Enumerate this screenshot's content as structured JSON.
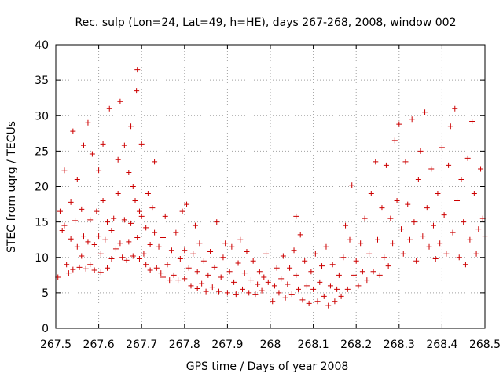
{
  "chart_data": {
    "type": "scatter",
    "title": "Rec. sulp (Lon=24, Lat=49, h=HE), days 267-268, 2008, window 002",
    "xlabel": "GPS time / Days of year 2008",
    "ylabel": "STEC from uqrg / TECUs",
    "xlim": [
      267.5,
      268.5
    ],
    "ylim": [
      0,
      40
    ],
    "x_ticks": [
      267.5,
      267.6,
      267.7,
      267.8,
      267.9,
      268.0,
      268.1,
      268.2,
      268.3,
      268.4,
      268.5
    ],
    "x_tick_labels": [
      "267.5",
      "267.6",
      "267.7",
      "267.8",
      "267.9",
      "268",
      "268.1",
      "268.2",
      "268.3",
      "268.4",
      "268.5"
    ],
    "y_ticks": [
      0,
      5,
      10,
      15,
      20,
      25,
      30,
      35,
      40
    ],
    "y_tick_labels": [
      "0",
      "5",
      "10",
      "15",
      "20",
      "25",
      "30",
      "35",
      "40"
    ],
    "grid": true,
    "marker": "+",
    "color": "#cc0000",
    "points": [
      [
        267.505,
        7.2
      ],
      [
        267.51,
        16.5
      ],
      [
        267.515,
        13.8
      ],
      [
        267.52,
        22.3
      ],
      [
        267.52,
        14.5
      ],
      [
        267.525,
        9.0
      ],
      [
        267.53,
        7.8
      ],
      [
        267.535,
        17.8
      ],
      [
        267.535,
        12.6
      ],
      [
        267.54,
        8.3
      ],
      [
        267.54,
        27.8
      ],
      [
        267.545,
        15.2
      ],
      [
        267.55,
        21.0
      ],
      [
        267.55,
        11.5
      ],
      [
        267.555,
        8.6
      ],
      [
        267.56,
        16.8
      ],
      [
        267.56,
        10.2
      ],
      [
        267.565,
        25.8
      ],
      [
        267.565,
        13.0
      ],
      [
        267.57,
        8.4
      ],
      [
        267.575,
        29.0
      ],
      [
        267.575,
        12.2
      ],
      [
        267.58,
        15.3
      ],
      [
        267.58,
        9.0
      ],
      [
        267.585,
        24.6
      ],
      [
        267.59,
        11.8
      ],
      [
        267.59,
        8.2
      ],
      [
        267.595,
        16.5
      ],
      [
        267.6,
        22.3
      ],
      [
        267.6,
        13.0
      ],
      [
        267.605,
        10.5
      ],
      [
        267.605,
        7.9
      ],
      [
        267.61,
        18.0
      ],
      [
        267.61,
        26.0
      ],
      [
        267.615,
        12.5
      ],
      [
        267.62,
        8.5
      ],
      [
        267.62,
        15.0
      ],
      [
        267.625,
        31.0
      ],
      [
        267.63,
        13.8
      ],
      [
        267.63,
        9.8
      ],
      [
        267.635,
        15.5
      ],
      [
        267.64,
        11.2
      ],
      [
        267.645,
        23.8
      ],
      [
        267.645,
        19.0
      ],
      [
        267.65,
        32.0
      ],
      [
        267.65,
        12.0
      ],
      [
        267.655,
        10.0
      ],
      [
        267.66,
        25.8
      ],
      [
        267.66,
        15.3
      ],
      [
        267.665,
        9.6
      ],
      [
        267.67,
        22.0
      ],
      [
        267.67,
        12.2
      ],
      [
        267.675,
        28.5
      ],
      [
        267.675,
        14.8
      ],
      [
        267.68,
        20.0
      ],
      [
        267.68,
        10.2
      ],
      [
        267.685,
        18.0
      ],
      [
        267.688,
        33.5
      ],
      [
        267.69,
        36.5
      ],
      [
        267.69,
        12.8
      ],
      [
        267.695,
        16.5
      ],
      [
        267.695,
        9.8
      ],
      [
        267.7,
        26.0
      ],
      [
        267.7,
        15.8
      ],
      [
        267.705,
        10.5
      ],
      [
        267.71,
        14.2
      ],
      [
        267.71,
        9.0
      ],
      [
        267.715,
        19.0
      ],
      [
        267.72,
        11.8
      ],
      [
        267.72,
        8.2
      ],
      [
        267.725,
        17.0
      ],
      [
        267.73,
        23.5
      ],
      [
        267.73,
        13.5
      ],
      [
        267.735,
        8.5
      ],
      [
        267.74,
        11.5
      ],
      [
        267.745,
        7.8
      ],
      [
        267.75,
        12.8
      ],
      [
        267.75,
        7.2
      ],
      [
        267.755,
        15.8
      ],
      [
        267.76,
        9.0
      ],
      [
        267.765,
        6.8
      ],
      [
        267.77,
        11.0
      ],
      [
        267.775,
        7.5
      ],
      [
        267.78,
        13.5
      ],
      [
        267.785,
        6.8
      ],
      [
        267.79,
        9.8
      ],
      [
        267.795,
        16.5
      ],
      [
        267.8,
        7.0
      ],
      [
        267.8,
        11.0
      ],
      [
        267.805,
        17.5
      ],
      [
        267.81,
        8.5
      ],
      [
        267.815,
        6.0
      ],
      [
        267.82,
        10.5
      ],
      [
        267.825,
        14.5
      ],
      [
        267.83,
        5.6
      ],
      [
        267.83,
        8.0
      ],
      [
        267.835,
        12.0
      ],
      [
        267.84,
        6.3
      ],
      [
        267.845,
        9.5
      ],
      [
        267.85,
        5.2
      ],
      [
        267.855,
        7.5
      ],
      [
        267.86,
        10.8
      ],
      [
        267.865,
        5.8
      ],
      [
        267.87,
        8.6
      ],
      [
        267.875,
        15.0
      ],
      [
        267.88,
        5.2
      ],
      [
        267.885,
        7.2
      ],
      [
        267.89,
        10.0
      ],
      [
        267.895,
        12.0
      ],
      [
        267.9,
        5.0
      ],
      [
        267.905,
        8.0
      ],
      [
        267.91,
        11.5
      ],
      [
        267.915,
        6.5
      ],
      [
        267.92,
        4.8
      ],
      [
        267.925,
        9.2
      ],
      [
        267.93,
        12.5
      ],
      [
        267.935,
        5.5
      ],
      [
        267.94,
        7.8
      ],
      [
        267.945,
        10.8
      ],
      [
        267.95,
        5.0
      ],
      [
        267.955,
        6.8
      ],
      [
        267.96,
        9.5
      ],
      [
        267.965,
        4.8
      ],
      [
        267.97,
        6.2
      ],
      [
        267.975,
        8.0
      ],
      [
        267.98,
        5.3
      ],
      [
        267.985,
        7.2
      ],
      [
        267.99,
        10.5
      ],
      [
        267.995,
        6.5
      ],
      [
        268.005,
        3.8
      ],
      [
        268.01,
        6.0
      ],
      [
        268.015,
        8.5
      ],
      [
        268.02,
        5.0
      ],
      [
        268.025,
        7.0
      ],
      [
        268.03,
        10.2
      ],
      [
        268.035,
        4.3
      ],
      [
        268.04,
        6.2
      ],
      [
        268.045,
        8.5
      ],
      [
        268.05,
        4.8
      ],
      [
        268.055,
        11.0
      ],
      [
        268.06,
        15.8
      ],
      [
        268.06,
        7.5
      ],
      [
        268.065,
        5.5
      ],
      [
        268.07,
        13.2
      ],
      [
        268.075,
        4.0
      ],
      [
        268.08,
        9.5
      ],
      [
        268.085,
        6.0
      ],
      [
        268.09,
        3.5
      ],
      [
        268.095,
        8.0
      ],
      [
        268.1,
        5.5
      ],
      [
        268.105,
        10.5
      ],
      [
        268.11,
        3.8
      ],
      [
        268.115,
        6.5
      ],
      [
        268.12,
        8.8
      ],
      [
        268.125,
        4.5
      ],
      [
        268.13,
        11.5
      ],
      [
        268.135,
        3.2
      ],
      [
        268.14,
        6.0
      ],
      [
        268.145,
        9.0
      ],
      [
        268.15,
        3.8
      ],
      [
        268.155,
        5.5
      ],
      [
        268.16,
        7.5
      ],
      [
        268.165,
        4.5
      ],
      [
        268.17,
        10.0
      ],
      [
        268.175,
        14.5
      ],
      [
        268.18,
        5.5
      ],
      [
        268.185,
        12.5
      ],
      [
        268.19,
        20.2
      ],
      [
        268.195,
        7.5
      ],
      [
        268.2,
        9.5
      ],
      [
        268.205,
        6.0
      ],
      [
        268.21,
        12.0
      ],
      [
        268.215,
        8.0
      ],
      [
        268.22,
        15.5
      ],
      [
        268.225,
        6.8
      ],
      [
        268.23,
        10.5
      ],
      [
        268.235,
        19.0
      ],
      [
        268.24,
        8.0
      ],
      [
        268.245,
        23.5
      ],
      [
        268.25,
        12.5
      ],
      [
        268.255,
        7.5
      ],
      [
        268.26,
        17.0
      ],
      [
        268.265,
        10.0
      ],
      [
        268.27,
        23.0
      ],
      [
        268.275,
        8.8
      ],
      [
        268.28,
        15.5
      ],
      [
        268.285,
        12.0
      ],
      [
        268.29,
        26.5
      ],
      [
        268.295,
        18.0
      ],
      [
        268.3,
        28.8
      ],
      [
        268.305,
        14.0
      ],
      [
        268.31,
        10.5
      ],
      [
        268.315,
        23.5
      ],
      [
        268.32,
        17.5
      ],
      [
        268.325,
        12.5
      ],
      [
        268.33,
        29.5
      ],
      [
        268.335,
        15.0
      ],
      [
        268.34,
        9.5
      ],
      [
        268.345,
        21.0
      ],
      [
        268.35,
        25.0
      ],
      [
        268.355,
        13.0
      ],
      [
        268.36,
        30.5
      ],
      [
        268.365,
        17.0
      ],
      [
        268.37,
        11.5
      ],
      [
        268.375,
        22.5
      ],
      [
        268.38,
        14.5
      ],
      [
        268.385,
        9.8
      ],
      [
        268.39,
        19.0
      ],
      [
        268.395,
        12.0
      ],
      [
        268.4,
        25.5
      ],
      [
        268.405,
        16.0
      ],
      [
        268.41,
        10.5
      ],
      [
        268.415,
        23.0
      ],
      [
        268.42,
        28.5
      ],
      [
        268.425,
        13.5
      ],
      [
        268.43,
        31.0
      ],
      [
        268.435,
        18.0
      ],
      [
        268.44,
        10.0
      ],
      [
        268.445,
        21.0
      ],
      [
        268.45,
        15.0
      ],
      [
        268.455,
        9.0
      ],
      [
        268.46,
        24.0
      ],
      [
        268.465,
        12.5
      ],
      [
        268.47,
        29.2
      ],
      [
        268.475,
        19.0
      ],
      [
        268.48,
        10.5
      ],
      [
        268.485,
        14.0
      ],
      [
        268.49,
        22.5
      ],
      [
        268.495,
        15.5
      ],
      [
        268.5,
        13.0
      ]
    ]
  }
}
